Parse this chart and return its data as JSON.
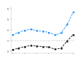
{
  "years": [
    2013,
    2014,
    2015,
    2016,
    2017,
    2018,
    2019,
    2020,
    2021,
    2022,
    2023
  ],
  "foreign_funds": [
    3500,
    3750,
    3950,
    4050,
    3900,
    3850,
    3750,
    3500,
    3700,
    4500,
    5700
  ],
  "local_funds": [
    2100,
    2250,
    2400,
    2500,
    2450,
    2400,
    2350,
    2150,
    2250,
    2950,
    3550
  ],
  "ref_line_y": 3000,
  "line1_color": "#3399ff",
  "line2_color": "#222222",
  "ref_color": "#cccccc",
  "ylim": [
    1800,
    6200
  ],
  "xlim": [
    2012.8,
    2023.2
  ],
  "bg_color": "#ffffff",
  "yticks": [
    2000,
    3000,
    4000,
    5000,
    6000
  ],
  "ytick_labels": [
    "2k",
    "3k",
    "4k",
    "5k",
    "6k"
  ]
}
